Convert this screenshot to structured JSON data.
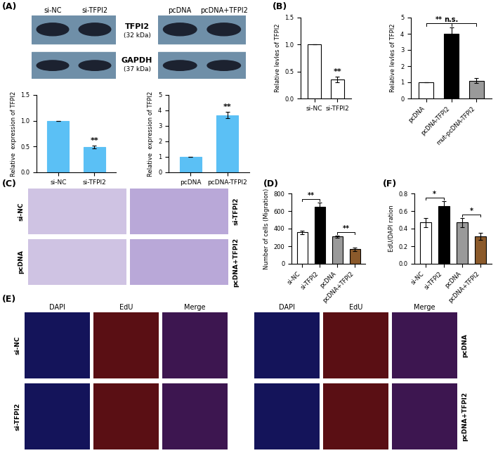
{
  "panel_labels": [
    "(A)",
    "(B)",
    "(C)",
    "(D)",
    "(E)",
    "(F)"
  ],
  "western_blot": {
    "lanes_left": [
      "si-NC",
      "si-TFPI2"
    ],
    "lanes_right": [
      "pcDNA",
      "pcDNA+TFPI2"
    ],
    "bands": [
      {
        "name": "TFPI2",
        "size": "(32 kDa)"
      },
      {
        "name": "GAPDH",
        "size": "(37 kDa)"
      }
    ]
  },
  "transwell": {
    "rows_left": [
      "si-NC",
      "pcDNA"
    ],
    "rows_right": [
      "si-TFPI2",
      "pcDNA+TFPI2"
    ]
  },
  "edu": {
    "columns": [
      "DAPI",
      "EdU",
      "Merge"
    ],
    "rows_left": [
      "si-NC",
      "si-TFPI2"
    ],
    "rows_right": [
      "pcDNA",
      "pcDNA+TFPI2"
    ]
  },
  "chart_data": [
    {
      "type": "bar",
      "categories": [
        "si-NC",
        "si-TFPI2"
      ],
      "values": [
        1.0,
        0.49
      ],
      "errors": [
        0,
        0.03
      ],
      "ylabel": "Relative  expression of TFPI2",
      "color": "#5bc0f5",
      "ylim": [
        0,
        1.5
      ],
      "yticks": [
        {
          "value": 0,
          "label": "0.0"
        },
        {
          "value": 0.5,
          "label": "0.5"
        },
        {
          "value": 1.0,
          "label": "1.0"
        },
        {
          "value": 1.5,
          "label": "1.5"
        }
      ],
      "annotations": [
        {
          "text": "**",
          "bars": [
            1
          ]
        }
      ]
    },
    {
      "type": "bar",
      "categories": [
        "pcDNA",
        "pcDNA-TFPI2"
      ],
      "values": [
        1.0,
        3.7
      ],
      "errors": [
        0,
        0.2
      ],
      "ylabel": "Relative  expression of TFPI2",
      "color": "#5bc0f5",
      "ylim": [
        0,
        5
      ],
      "yticks": [
        0,
        1,
        2,
        3,
        4,
        5
      ],
      "annotations": [
        {
          "text": "**",
          "bars": [
            1
          ]
        }
      ]
    },
    {
      "type": "bar",
      "categories": [
        "si-NC",
        "si-TFPI2"
      ],
      "values": [
        1.0,
        0.35
      ],
      "errors": [
        0,
        0.05
      ],
      "ylabel": "Relative levles of TFPI2",
      "colors": [
        "#ffffff",
        "#ffffff"
      ],
      "ylim": [
        0,
        1.5
      ],
      "yticks": [
        {
          "value": 0,
          "label": "0.0"
        },
        {
          "value": 0.5,
          "label": "0.5"
        },
        {
          "value": 1.0,
          "label": "1.0"
        },
        {
          "value": 1.5,
          "label": "1.5"
        }
      ],
      "annotations": [
        {
          "text": "**",
          "bars": [
            1
          ]
        }
      ]
    },
    {
      "type": "bar",
      "categories": [
        "pcDNA",
        "pcDNA-TFPI2",
        "mut-pcDNA-TFPI2"
      ],
      "values": [
        1.0,
        4.0,
        1.1
      ],
      "errors": [
        0,
        0.4,
        0.15
      ],
      "ylabel": "Relative levles of TFPI2",
      "colors": [
        "#ffffff",
        "#000000",
        "#9a9a9a"
      ],
      "ylim": [
        0,
        5
      ],
      "yticks": [
        0,
        1,
        2,
        3,
        4,
        5
      ],
      "annotations": [
        {
          "text": "**",
          "bars": [
            0,
            1
          ]
        },
        {
          "text": "n.s.",
          "bars": [
            0,
            2
          ]
        }
      ]
    },
    {
      "type": "bar",
      "categories": [
        "si-NC",
        "si-TFPI2",
        "pcDNA",
        "pcDNA+TFPI2"
      ],
      "values": [
        360,
        650,
        310,
        165
      ],
      "errors": [
        20,
        45,
        10,
        20
      ],
      "ylabel": "Number of cells (Migration)",
      "colors": [
        "#ffffff",
        "#000000",
        "#9a9a9a",
        "#8b5a2b"
      ],
      "ylim": [
        0,
        800
      ],
      "yticks": [
        0,
        200,
        400,
        600,
        800
      ],
      "annotations": [
        {
          "text": "**",
          "bars": [
            0,
            1
          ]
        },
        {
          "text": "**",
          "bars": [
            2,
            3
          ]
        }
      ]
    },
    {
      "type": "bar",
      "categories": [
        "si-NC",
        "si-TFPI2",
        "pcDNA",
        "pcDNA+TFPI2"
      ],
      "values": [
        0.47,
        0.66,
        0.47,
        0.31
      ],
      "errors": [
        0.05,
        0.05,
        0.05,
        0.04
      ],
      "ylabel": "EdU/DAPI ration",
      "colors": [
        "#ffffff",
        "#000000",
        "#9a9a9a",
        "#8b5a2b"
      ],
      "ylim": [
        0,
        0.8
      ],
      "yticks": [
        {
          "value": 0,
          "label": "0.0"
        },
        {
          "value": 0.2,
          "label": "0.2"
        },
        {
          "value": 0.4,
          "label": "0.4"
        },
        {
          "value": 0.6,
          "label": "0.6"
        },
        {
          "value": 0.8,
          "label": "0.8"
        }
      ],
      "annotations": [
        {
          "text": "*",
          "bars": [
            0,
            1
          ]
        },
        {
          "text": "*",
          "bars": [
            2,
            3
          ]
        }
      ]
    }
  ]
}
